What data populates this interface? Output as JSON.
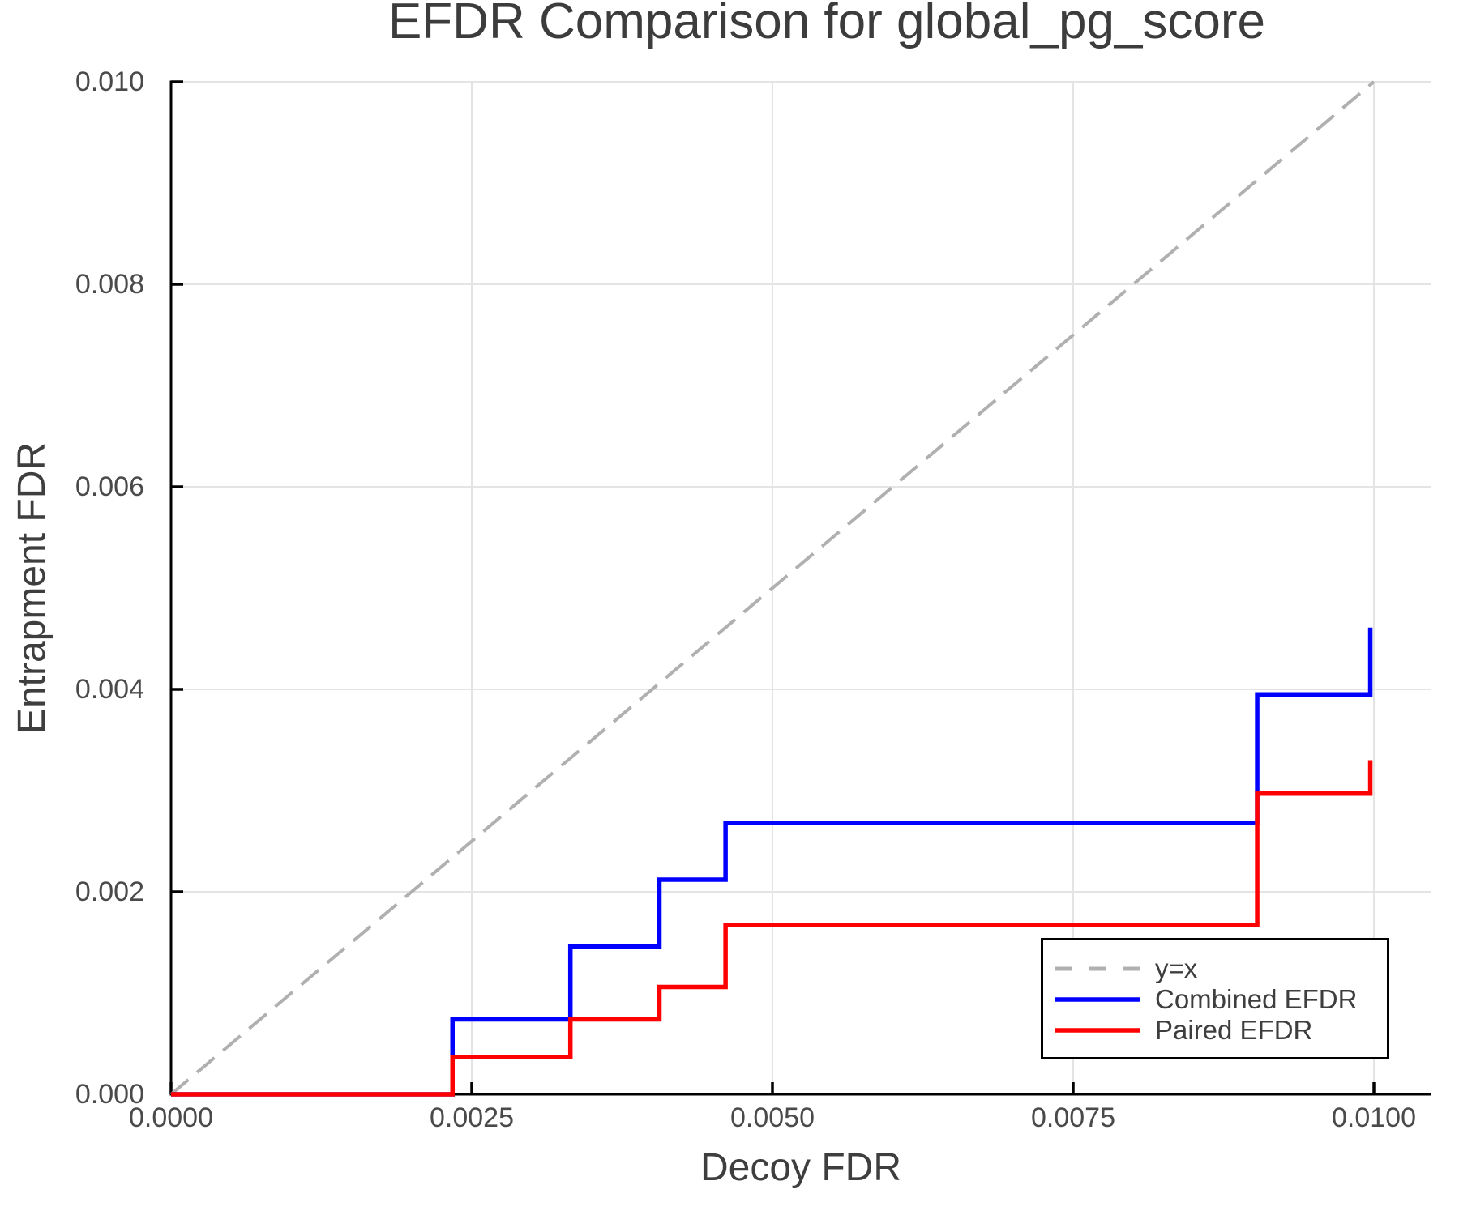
{
  "chart_data": {
    "type": "line",
    "title": "EFDR Comparison for global_pg_score",
    "xlabel": "Decoy FDR",
    "ylabel": "Entrapment FDR",
    "xlim": [
      0,
      0.01047
    ],
    "ylim": [
      0,
      0.01
    ],
    "grid": true,
    "grid_color": "#e4e4e4",
    "axis_color": "#000000",
    "x_ticks": {
      "values": [
        0.0,
        0.0025,
        0.005,
        0.0075,
        0.01
      ],
      "labels": [
        "0.0000",
        "0.0025",
        "0.0050",
        "0.0075",
        "0.0100"
      ]
    },
    "y_ticks": {
      "values": [
        0.0,
        0.002,
        0.004,
        0.006,
        0.008,
        0.01
      ],
      "labels": [
        "0.000",
        "0.002",
        "0.004",
        "0.006",
        "0.008",
        "0.010"
      ]
    },
    "legend": {
      "position": "lower right",
      "border": true
    },
    "series": [
      {
        "name": "y=x",
        "style": "dashed",
        "color": "#b0b0b0",
        "points": [
          [
            0,
            0
          ],
          [
            0.01,
            0.01
          ]
        ]
      },
      {
        "name": "Combined EFDR",
        "style": "solid",
        "color": "#0000ff",
        "points": [
          [
            0,
            0
          ],
          [
            0.00234,
            0
          ],
          [
            0.00234,
            0.00074
          ],
          [
            0.00332,
            0.00074
          ],
          [
            0.00332,
            0.00146
          ],
          [
            0.00406,
            0.00146
          ],
          [
            0.00406,
            0.00212
          ],
          [
            0.00461,
            0.00212
          ],
          [
            0.00461,
            0.00268
          ],
          [
            0.00903,
            0.00268
          ],
          [
            0.00903,
            0.00395
          ],
          [
            0.00997,
            0.00395
          ],
          [
            0.00997,
            0.00461
          ]
        ]
      },
      {
        "name": "Paired EFDR",
        "style": "solid",
        "color": "#ff0000",
        "points": [
          [
            0,
            0
          ],
          [
            0.00234,
            0
          ],
          [
            0.00234,
            0.00037
          ],
          [
            0.00332,
            0.00037
          ],
          [
            0.00332,
            0.00074
          ],
          [
            0.00406,
            0.00074
          ],
          [
            0.00406,
            0.00106
          ],
          [
            0.00461,
            0.00106
          ],
          [
            0.00461,
            0.00167
          ],
          [
            0.00903,
            0.00167
          ],
          [
            0.00903,
            0.00297
          ],
          [
            0.00997,
            0.00297
          ],
          [
            0.00997,
            0.0033
          ]
        ]
      }
    ]
  }
}
